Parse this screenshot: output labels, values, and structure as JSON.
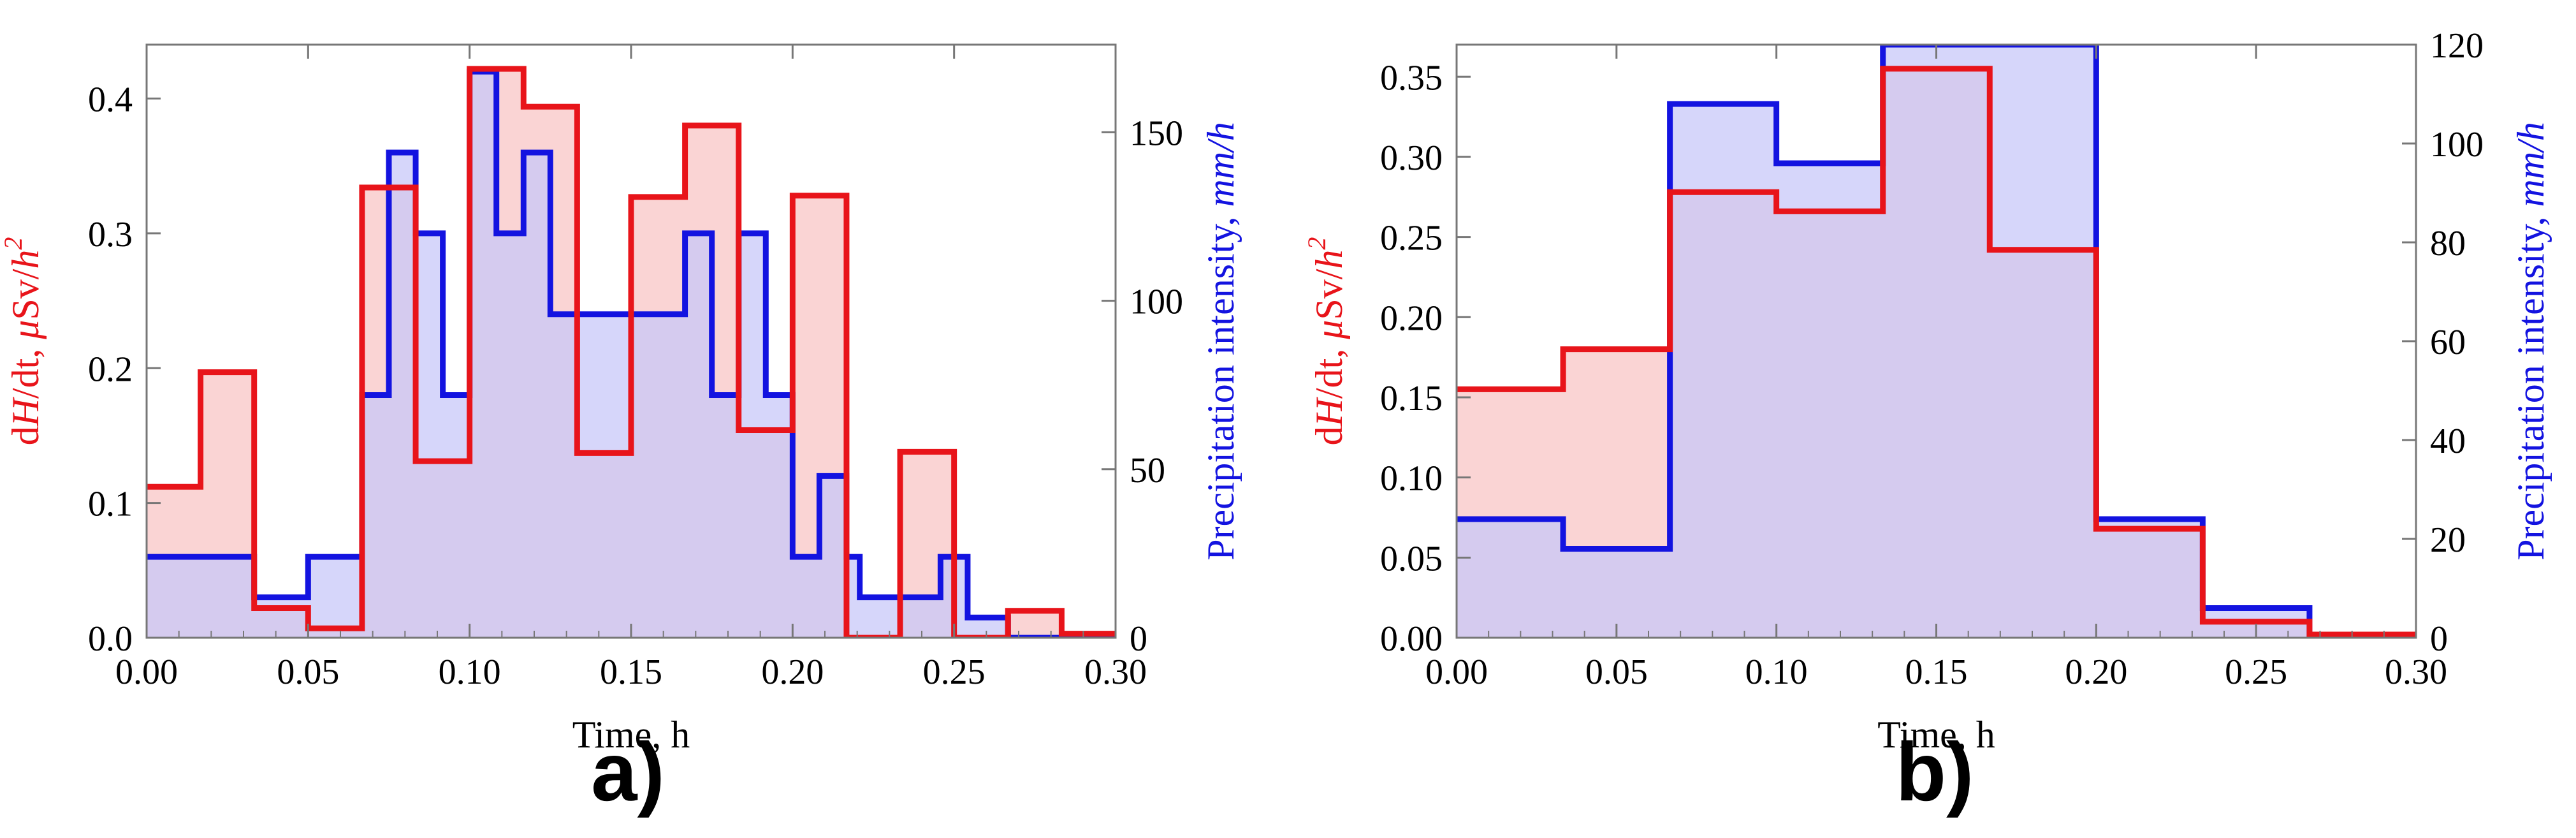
{
  "colors": {
    "red": "#e8141a",
    "blue": "#1313e0",
    "red_fill": "#f8c6c6",
    "blue_fill": "#c8c8f8",
    "overlap_fill": "#d6a0c8"
  },
  "chart_data": [
    {
      "panel": "a)",
      "type": "step-area",
      "xlabel": "Time, h",
      "ylabel_left": {
        "pre": "d",
        "H": "H",
        "post": "/dt, ",
        "mu": "μ",
        "unit": "Sv/",
        "h2": "h",
        "sup": "2"
      },
      "ylabel_right": {
        "text": "Precipitation intensity, ",
        "unit": "mm/h"
      },
      "xlim": [
        0,
        0.3
      ],
      "ylim_left": [
        0,
        0.44
      ],
      "ylim_right": [
        0,
        176
      ],
      "xticks": [
        "0.00",
        "0.05",
        "0.10",
        "0.15",
        "0.20",
        "0.25",
        "0.30"
      ],
      "xtick_values": [
        0,
        0.05,
        0.1,
        0.15,
        0.2,
        0.25,
        0.3
      ],
      "yticks_left": [
        "0.0",
        "0.1",
        "0.2",
        "0.3",
        "0.4"
      ],
      "ytick_values_left": [
        0,
        0.1,
        0.2,
        0.3,
        0.4
      ],
      "yticks_right": [
        "0",
        "50",
        "100",
        "150"
      ],
      "ytick_values_right": [
        0,
        50,
        100,
        150
      ],
      "series": [
        {
          "name": "dH/dt (μSv/h²)",
          "axis": "left",
          "color": "red",
          "edges": [
            0,
            0.0167,
            0.0333,
            0.05,
            0.0667,
            0.0833,
            0.1,
            0.1167,
            0.1333,
            0.15,
            0.1667,
            0.1833,
            0.2,
            0.2167,
            0.2333,
            0.25,
            0.2667,
            0.2833,
            0.3
          ],
          "values": [
            0.112,
            0.197,
            0.022,
            0.007,
            0.334,
            0.131,
            0.422,
            0.394,
            0.137,
            0.327,
            0.38,
            0.154,
            0.328,
            0.0,
            0.138,
            0.0,
            0.02,
            0.003
          ]
        },
        {
          "name": "Precipitation intensity (mm/h)",
          "axis": "right",
          "color": "blue",
          "edges": [
            0,
            0.0333,
            0.05,
            0.0667,
            0.075,
            0.0833,
            0.0917,
            0.1,
            0.1083,
            0.1167,
            0.125,
            0.1333,
            0.15,
            0.1667,
            0.175,
            0.1833,
            0.1917,
            0.2,
            0.2083,
            0.2167,
            0.2208,
            0.2292,
            0.2333,
            0.2458,
            0.2542,
            0.2667,
            0.3
          ],
          "values": [
            24,
            12,
            24,
            72,
            144,
            120,
            72,
            168,
            120,
            144,
            96,
            96,
            96,
            120,
            72,
            120,
            72,
            24,
            48,
            24,
            12,
            12,
            12,
            24,
            6,
            0
          ]
        }
      ]
    },
    {
      "panel": "b)",
      "type": "step-area",
      "xlabel": "Time, h",
      "ylabel_left": {
        "pre": "d",
        "H": "H",
        "post": "/dt, ",
        "mu": "μ",
        "unit": "Sv/",
        "h2": "h",
        "sup": "2"
      },
      "ylabel_right": {
        "text": "Precipitation intensity, ",
        "unit": "mm/h"
      },
      "xlim": [
        0,
        0.3
      ],
      "ylim_left": [
        0,
        0.37
      ],
      "ylim_right": [
        0,
        120
      ],
      "xticks": [
        "0.00",
        "0.05",
        "0.10",
        "0.15",
        "0.20",
        "0.25",
        "0.30"
      ],
      "xtick_values": [
        0,
        0.05,
        0.1,
        0.15,
        0.2,
        0.25,
        0.3
      ],
      "yticks_left": [
        "0.00",
        "0.05",
        "0.10",
        "0.15",
        "0.20",
        "0.25",
        "0.30",
        "0.35"
      ],
      "ytick_values_left": [
        0,
        0.05,
        0.1,
        0.15,
        0.2,
        0.25,
        0.3,
        0.35
      ],
      "yticks_right": [
        "0",
        "20",
        "40",
        "60",
        "80",
        "100",
        "120"
      ],
      "ytick_values_right": [
        0,
        20,
        40,
        60,
        80,
        100,
        120
      ],
      "series": [
        {
          "name": "dH/dt (μSv/h²)",
          "axis": "left",
          "color": "red",
          "edges": [
            0,
            0.0333,
            0.0667,
            0.1,
            0.1333,
            0.1667,
            0.2,
            0.2333,
            0.2667,
            0.3
          ],
          "values": [
            0.155,
            0.18,
            0.278,
            0.266,
            0.355,
            0.242,
            0.068,
            0.01,
            0.002
          ]
        },
        {
          "name": "Precipitation intensity (mm/h)",
          "axis": "right",
          "color": "blue",
          "edges": [
            0,
            0.0333,
            0.0667,
            0.1,
            0.1333,
            0.1667,
            0.2,
            0.2333,
            0.2667,
            0.3
          ],
          "values": [
            24,
            18,
            108,
            96,
            120,
            120,
            24,
            6,
            0
          ]
        }
      ]
    }
  ]
}
